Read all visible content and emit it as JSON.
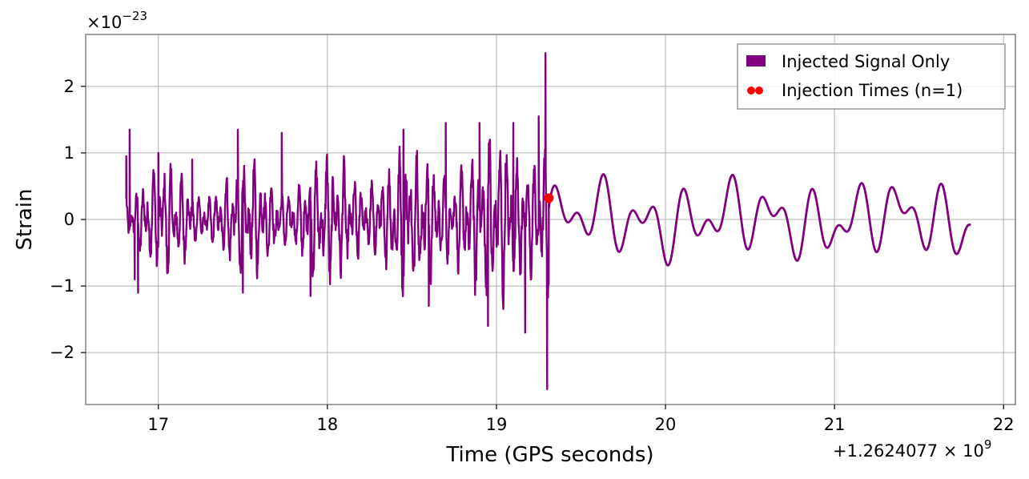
{
  "chart_data": {
    "type": "line",
    "xlabel": "Time (GPS seconds)",
    "ylabel": "Strain",
    "x_offset_label": "+1.2624077",
    "x_offset_exp": "9",
    "y_scale_label": "×10",
    "y_scale_exp": "−23",
    "xlim": [
      16.57,
      22.07
    ],
    "ylim": [
      -2.78,
      2.78
    ],
    "x_ticks": [
      {
        "value": 17,
        "label": "17"
      },
      {
        "value": 18,
        "label": "18"
      },
      {
        "value": 19,
        "label": "19"
      },
      {
        "value": 20,
        "label": "20"
      },
      {
        "value": 21,
        "label": "21"
      },
      {
        "value": 22,
        "label": "22"
      }
    ],
    "y_ticks": [
      {
        "value": 2,
        "label": "2"
      },
      {
        "value": 1,
        "label": "1"
      },
      {
        "value": 0,
        "label": "0"
      },
      {
        "value": -1,
        "label": "−1"
      },
      {
        "value": -2,
        "label": "−2"
      }
    ],
    "grid": true,
    "legend_position": "top-right",
    "series": [
      {
        "name": "Injected Signal Only",
        "kind": "line",
        "color": "#800080",
        "x_range": [
          16.81,
          21.81
        ],
        "chirp_time": 19.31,
        "points": [
          [
            16.81,
            0.95
          ],
          [
            16.83,
            1.35
          ],
          [
            16.86,
            -0.9
          ],
          [
            16.88,
            -1.1
          ],
          [
            17.0,
            1.0
          ],
          [
            17.2,
            0.9
          ],
          [
            17.47,
            1.35
          ],
          [
            17.5,
            -1.1
          ],
          [
            17.73,
            1.3
          ],
          [
            17.9,
            -1.15
          ],
          [
            18.45,
            1.35
          ],
          [
            18.6,
            -1.3
          ],
          [
            18.7,
            1.45
          ],
          [
            18.9,
            1.45
          ],
          [
            18.95,
            -1.6
          ],
          [
            19.1,
            1.45
          ],
          [
            19.17,
            -1.7
          ],
          [
            19.25,
            1.55
          ],
          [
            19.29,
            2.5
          ],
          [
            19.3,
            -2.55
          ],
          [
            19.31,
            0.32
          ]
        ],
        "ringdown_points": [
          [
            19.35,
            0.45
          ],
          [
            19.39,
            -0.5
          ],
          [
            19.5,
            0.5
          ],
          [
            19.55,
            -0.45
          ],
          [
            19.76,
            0.75
          ],
          [
            19.78,
            -0.5
          ],
          [
            20.02,
            0.75
          ],
          [
            20.05,
            -0.65
          ],
          [
            20.27,
            0.65
          ],
          [
            20.5,
            0.6
          ],
          [
            20.73,
            0.75
          ],
          [
            20.95,
            0.8
          ],
          [
            20.9,
            -0.65
          ],
          [
            21.2,
            0.72
          ],
          [
            21.45,
            0.6
          ],
          [
            21.78,
            0.75
          ],
          [
            21.81,
            -0.35
          ]
        ]
      },
      {
        "name": "Injection Times (n=1)",
        "kind": "scatter",
        "color": "#ff0000",
        "x": [
          19.31
        ],
        "y": [
          0.32
        ]
      }
    ]
  },
  "legend": {
    "signal_label": "Injected Signal Only",
    "injection_label": "Injection Times (n=1)"
  }
}
